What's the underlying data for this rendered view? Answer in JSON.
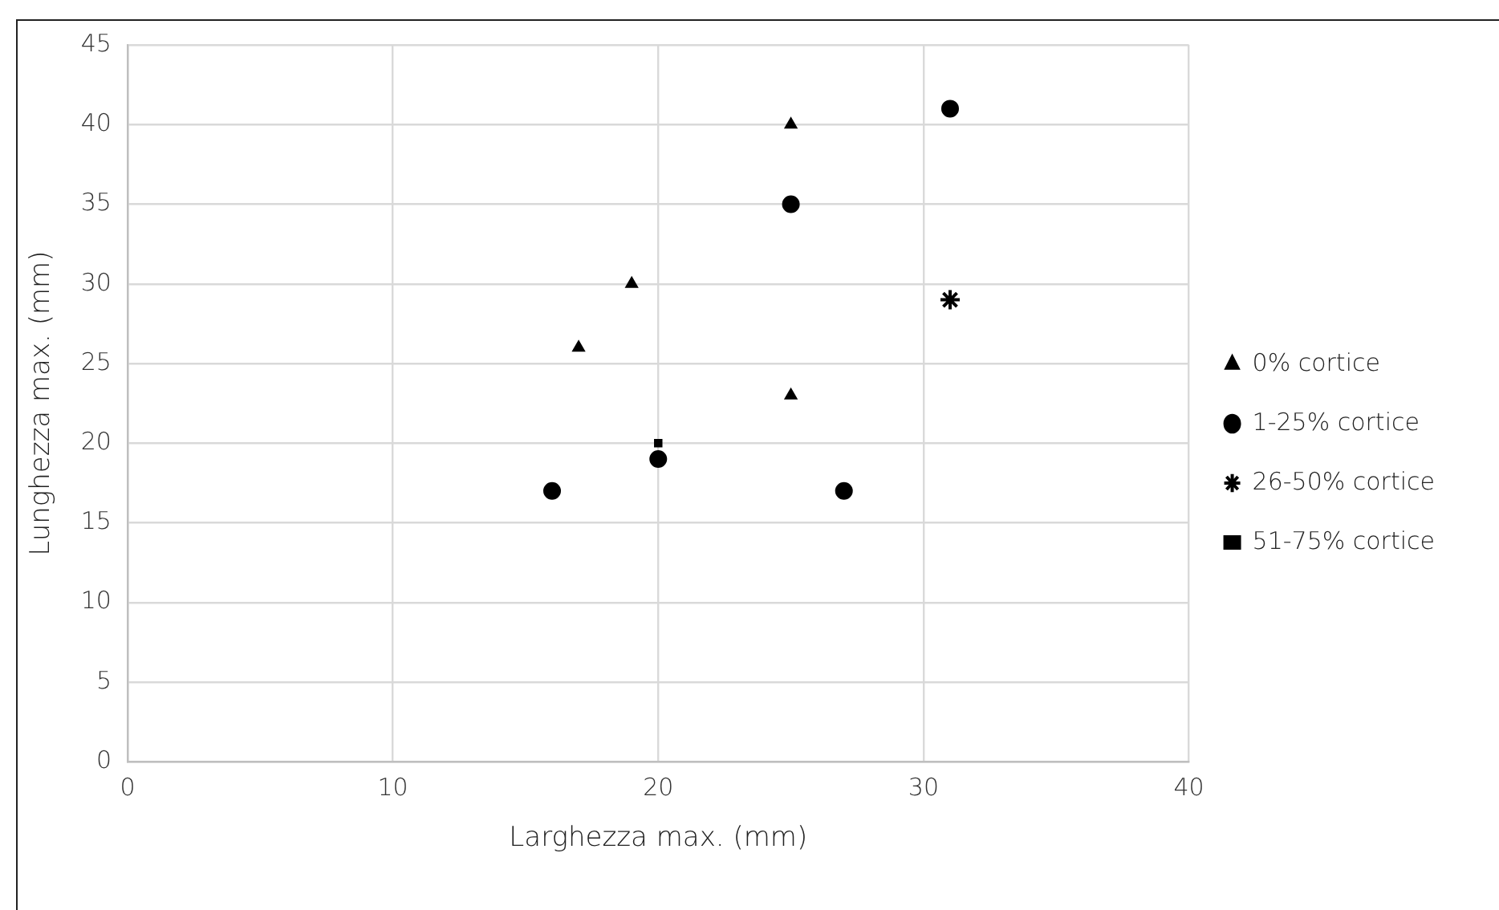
{
  "chart_data": {
    "type": "scatter",
    "xlabel": "Larghezza max. (mm)",
    "ylabel": "Lunghezza max. (mm)",
    "xlim": [
      0,
      40
    ],
    "xticks": [
      0,
      10,
      20,
      30,
      40
    ],
    "ylim": [
      0,
      45
    ],
    "yticks": [
      0,
      5,
      10,
      15,
      20,
      25,
      30,
      35,
      40,
      45
    ],
    "grid": true,
    "legend": "right",
    "series": [
      {
        "name": "0% cortice",
        "color": "#000000",
        "marker": "triangle",
        "x": [
          17,
          19,
          25,
          25
        ],
        "values": [
          26,
          30,
          40,
          23
        ]
      },
      {
        "name": "1-25% cortice",
        "color": "#000000",
        "marker": "circle",
        "x": [
          16,
          20,
          25,
          27,
          31
        ],
        "values": [
          17,
          19,
          35,
          17,
          41
        ]
      },
      {
        "name": "26-50% cortice",
        "color": "#000000",
        "marker": "cross",
        "x": [
          31
        ],
        "values": [
          29
        ]
      },
      {
        "name": "51-75% cortice",
        "color": "#000000",
        "marker": "square",
        "x": [
          20
        ],
        "values": [
          20
        ]
      }
    ]
  }
}
